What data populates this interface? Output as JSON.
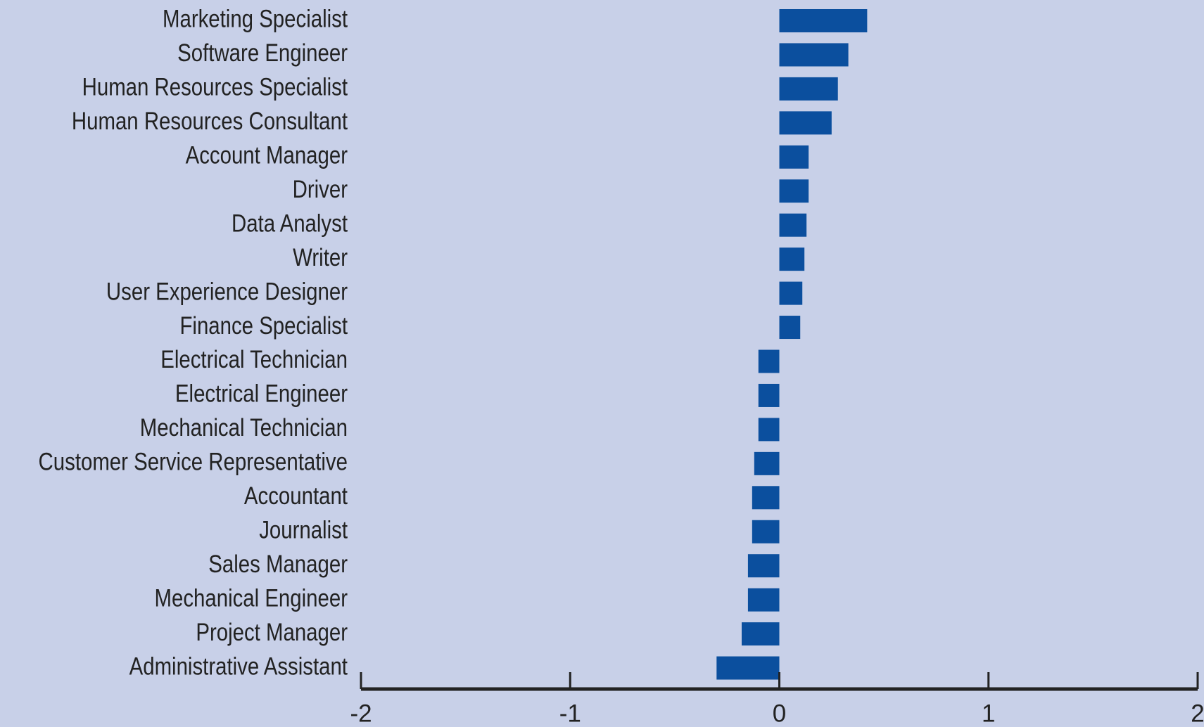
{
  "chart_data": {
    "type": "barh",
    "categories": [
      "Marketing Specialist",
      "Software Engineer",
      "Human Resources Specialist",
      "Human Resources Consultant",
      "Account Manager",
      "Driver",
      "Data Analyst",
      "Writer",
      "User Experience Designer",
      "Finance Specialist",
      "Electrical Technician",
      "Electrical Engineer",
      "Mechanical Technician",
      "Customer Service Representative",
      "Accountant",
      "Journalist",
      "Sales Manager",
      "Mechanical Engineer",
      "Project Manager",
      "Administrative Assistant"
    ],
    "values": [
      0.42,
      0.33,
      0.28,
      0.25,
      0.14,
      0.14,
      0.13,
      0.12,
      0.11,
      0.1,
      -0.1,
      -0.1,
      -0.1,
      -0.12,
      -0.13,
      -0.13,
      -0.15,
      -0.15,
      -0.18,
      -0.3
    ],
    "color": "#0b4f9e",
    "xlim": [
      -2,
      2
    ],
    "xticks": [
      -2,
      -1,
      0,
      1,
      2
    ]
  }
}
